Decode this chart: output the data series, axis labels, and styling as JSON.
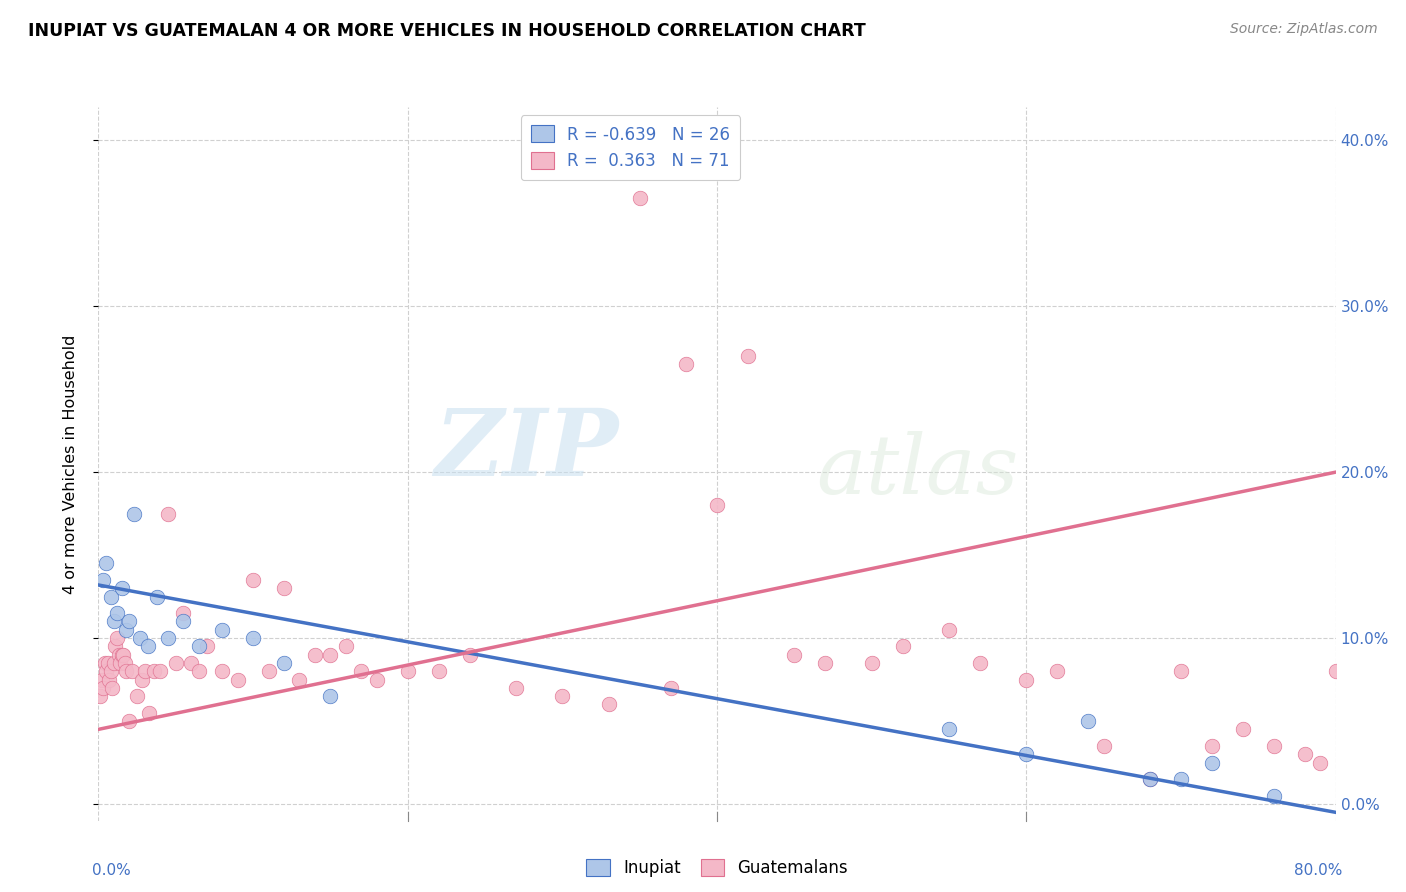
{
  "title": "INUPIAT VS GUATEMALAN 4 OR MORE VEHICLES IN HOUSEHOLD CORRELATION CHART",
  "source": "Source: ZipAtlas.com",
  "ylabel": "4 or more Vehicles in Household",
  "xlim": [
    0.0,
    80.0
  ],
  "ylim": [
    -1.0,
    42.0
  ],
  "legend_inupiat_R": "-0.639",
  "legend_inupiat_N": "26",
  "legend_guatemalan_R": "0.363",
  "legend_guatemalan_N": "71",
  "inupiat_color": "#aec6e8",
  "inupiat_line_color": "#4472c4",
  "guatemalan_color": "#f4b8c8",
  "guatemalan_line_color": "#e07090",
  "inupiat_x": [
    0.3,
    0.5,
    0.8,
    1.0,
    1.2,
    1.5,
    1.8,
    2.0,
    2.3,
    2.7,
    3.2,
    3.8,
    4.5,
    5.5,
    6.5,
    8.0,
    10.0,
    12.0,
    15.0,
    55.0,
    60.0,
    64.0,
    68.0,
    70.0,
    72.0,
    76.0
  ],
  "inupiat_y": [
    13.5,
    14.5,
    12.5,
    11.0,
    11.5,
    13.0,
    10.5,
    11.0,
    17.5,
    10.0,
    9.5,
    12.5,
    10.0,
    11.0,
    9.5,
    10.5,
    10.0,
    8.5,
    6.5,
    4.5,
    3.0,
    5.0,
    1.5,
    1.5,
    2.5,
    0.5
  ],
  "guatemalan_x": [
    0.1,
    0.2,
    0.3,
    0.4,
    0.5,
    0.6,
    0.7,
    0.8,
    0.9,
    1.0,
    1.1,
    1.2,
    1.3,
    1.4,
    1.5,
    1.6,
    1.7,
    1.8,
    2.0,
    2.2,
    2.5,
    2.8,
    3.0,
    3.3,
    3.6,
    4.0,
    4.5,
    5.0,
    5.5,
    6.0,
    6.5,
    7.0,
    8.0,
    9.0,
    10.0,
    11.0,
    12.0,
    13.0,
    14.0,
    15.0,
    16.0,
    17.0,
    18.0,
    20.0,
    22.0,
    24.0,
    27.0,
    30.0,
    33.0,
    35.0,
    37.0,
    38.0,
    40.0,
    42.0,
    45.0,
    47.0,
    50.0,
    52.0,
    55.0,
    57.0,
    60.0,
    62.0,
    65.0,
    68.0,
    70.0,
    72.0,
    74.0,
    76.0,
    78.0,
    79.0,
    80.0
  ],
  "guatemalan_y": [
    6.5,
    7.5,
    7.0,
    8.5,
    8.0,
    8.5,
    7.5,
    8.0,
    7.0,
    8.5,
    9.5,
    10.0,
    9.0,
    8.5,
    9.0,
    9.0,
    8.5,
    8.0,
    5.0,
    8.0,
    6.5,
    7.5,
    8.0,
    5.5,
    8.0,
    8.0,
    17.5,
    8.5,
    11.5,
    8.5,
    8.0,
    9.5,
    8.0,
    7.5,
    13.5,
    8.0,
    13.0,
    7.5,
    9.0,
    9.0,
    9.5,
    8.0,
    7.5,
    8.0,
    8.0,
    9.0,
    7.0,
    6.5,
    6.0,
    36.5,
    7.0,
    26.5,
    18.0,
    27.0,
    9.0,
    8.5,
    8.5,
    9.5,
    10.5,
    8.5,
    7.5,
    8.0,
    3.5,
    1.5,
    8.0,
    3.5,
    4.5,
    3.5,
    3.0,
    2.5,
    8.0
  ],
  "inupiat_line_x0": 0.0,
  "inupiat_line_y0": 13.2,
  "inupiat_line_x1": 80.0,
  "inupiat_line_y1": -0.5,
  "guatemalan_line_x0": 0.0,
  "guatemalan_line_y0": 4.5,
  "guatemalan_line_x1": 80.0,
  "guatemalan_line_y1": 20.0
}
